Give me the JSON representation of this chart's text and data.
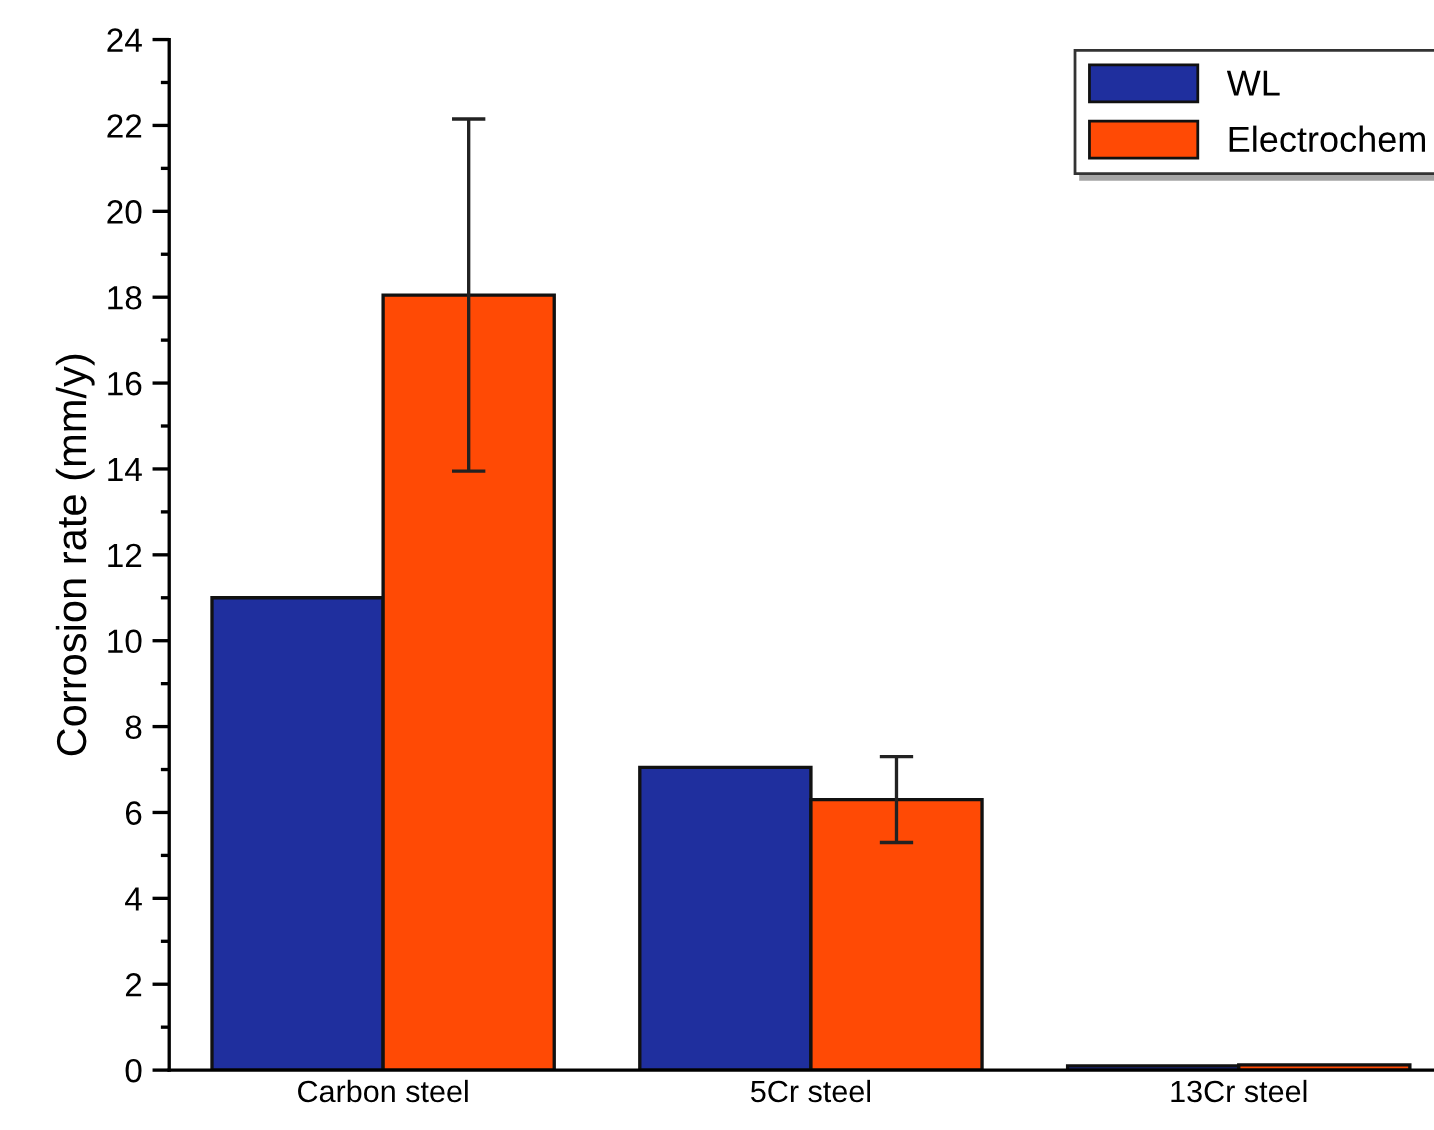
{
  "chart_data": {
    "type": "bar",
    "ylabel": "Corrosion rate (mm/y)",
    "categories": [
      "Carbon steel",
      "5Cr steel",
      "13Cr steel"
    ],
    "series": [
      {
        "name": "WL",
        "color": "#1f2f9e",
        "values": [
          11.0,
          7.05,
          0.1
        ]
      },
      {
        "name": "Electrochem",
        "color": "#ff4a05",
        "values": [
          18.05,
          6.3,
          0.12
        ],
        "errors": [
          4.1,
          1.0,
          null
        ]
      }
    ],
    "ylim": [
      0,
      24
    ],
    "yticks": [
      0,
      2,
      4,
      6,
      8,
      10,
      12,
      14,
      16,
      18,
      20,
      22,
      24
    ],
    "grid": false,
    "legend": "top right"
  }
}
